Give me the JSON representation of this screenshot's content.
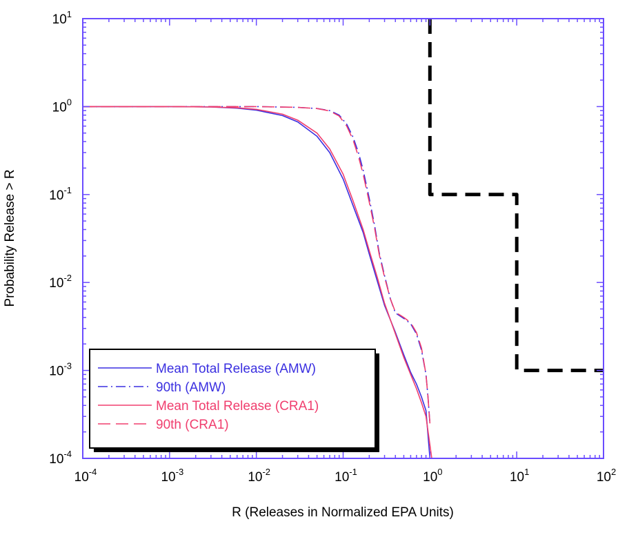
{
  "chart_data": {
    "type": "line",
    "title": "",
    "xlabel": "R (Releases in Normalized EPA Units)",
    "ylabel": "Probability Release > R",
    "xscale": "log",
    "yscale": "log",
    "xlim": [
      0.0001,
      100
    ],
    "ylim": [
      0.0001,
      10
    ],
    "x_ticks": [
      {
        "value": 0.0001,
        "base": "10",
        "exp": "-4"
      },
      {
        "value": 0.001,
        "base": "10",
        "exp": "-3"
      },
      {
        "value": 0.01,
        "base": "10",
        "exp": "-2"
      },
      {
        "value": 0.1,
        "base": "10",
        "exp": "-1"
      },
      {
        "value": 1,
        "base": "10",
        "exp": "0"
      },
      {
        "value": 10,
        "base": "10",
        "exp": "1"
      },
      {
        "value": 100,
        "base": "10",
        "exp": "2"
      }
    ],
    "y_ticks": [
      {
        "value": 0.0001,
        "base": "10",
        "exp": "-4"
      },
      {
        "value": 0.001,
        "base": "10",
        "exp": "-3"
      },
      {
        "value": 0.01,
        "base": "10",
        "exp": "-2"
      },
      {
        "value": 0.1,
        "base": "10",
        "exp": "-1"
      },
      {
        "value": 1,
        "base": "10",
        "exp": "0"
      },
      {
        "value": 10,
        "base": "10",
        "exp": "1"
      }
    ],
    "grid": false,
    "legend_position": "bottom-left",
    "axis_color": "#6a4cff",
    "series": [
      {
        "name": "Mean Total Release (AMW)",
        "color": "#3a2fe0",
        "dash": "solid",
        "x": [
          0.0001,
          0.001,
          0.003,
          0.006,
          0.01,
          0.02,
          0.03,
          0.05,
          0.07,
          0.1,
          0.13,
          0.17,
          0.2,
          0.25,
          0.3,
          0.4,
          0.5,
          0.6,
          0.7,
          0.8,
          0.9,
          1.0
        ],
        "y": [
          1,
          1,
          0.99,
          0.96,
          0.91,
          0.79,
          0.67,
          0.46,
          0.3,
          0.15,
          0.075,
          0.037,
          0.021,
          0.01,
          0.0055,
          0.0027,
          0.0015,
          0.00095,
          0.0007,
          0.0005,
          0.00035,
          0.0001
        ]
      },
      {
        "name": "90th (AMW)",
        "color": "#3a2fe0",
        "dash": "dashdot",
        "x": [
          0.0001,
          0.001,
          0.01,
          0.03,
          0.05,
          0.07,
          0.09,
          0.11,
          0.13,
          0.15,
          0.17,
          0.2,
          0.23,
          0.26,
          0.3,
          0.35,
          0.4,
          0.5,
          0.6,
          0.7,
          0.8,
          0.9,
          0.95,
          1.0
        ],
        "y": [
          1,
          1,
          1,
          0.98,
          0.95,
          0.9,
          0.8,
          0.63,
          0.45,
          0.3,
          0.19,
          0.09,
          0.045,
          0.022,
          0.012,
          0.0065,
          0.0045,
          0.0039,
          0.0034,
          0.0026,
          0.0017,
          0.0009,
          0.0005,
          0.00025
        ]
      },
      {
        "name": "Mean Total Release (CRA1)",
        "color": "#f03e6e",
        "dash": "solid",
        "x": [
          0.0001,
          0.001,
          0.003,
          0.006,
          0.01,
          0.02,
          0.03,
          0.05,
          0.07,
          0.1,
          0.13,
          0.17,
          0.2,
          0.25,
          0.3,
          0.4,
          0.5,
          0.6,
          0.7,
          0.8,
          0.9,
          1.05
        ],
        "y": [
          1,
          1,
          0.99,
          0.97,
          0.93,
          0.82,
          0.7,
          0.5,
          0.33,
          0.17,
          0.085,
          0.04,
          0.023,
          0.011,
          0.0058,
          0.0026,
          0.0014,
          0.0009,
          0.00062,
          0.00043,
          0.0003,
          0.0001
        ]
      },
      {
        "name": "90th (CRA1)",
        "color": "#f03e6e",
        "dash": "dashed",
        "x": [
          0.0001,
          0.001,
          0.01,
          0.03,
          0.05,
          0.07,
          0.09,
          0.11,
          0.13,
          0.15,
          0.17,
          0.2,
          0.23,
          0.26,
          0.3,
          0.35,
          0.4,
          0.5,
          0.6,
          0.7,
          0.8,
          0.9,
          0.95,
          1.0
        ],
        "y": [
          1,
          1,
          1,
          0.98,
          0.95,
          0.89,
          0.78,
          0.6,
          0.42,
          0.27,
          0.17,
          0.082,
          0.042,
          0.021,
          0.0115,
          0.0065,
          0.0046,
          0.004,
          0.0035,
          0.0027,
          0.0018,
          0.0009,
          0.0005,
          0.00025
        ]
      },
      {
        "name": "",
        "color": "#000000",
        "dash": "limit",
        "x": [
          1,
          1,
          10,
          10,
          100
        ],
        "y": [
          10,
          0.1,
          0.1,
          0.001,
          0.001
        ]
      }
    ]
  }
}
